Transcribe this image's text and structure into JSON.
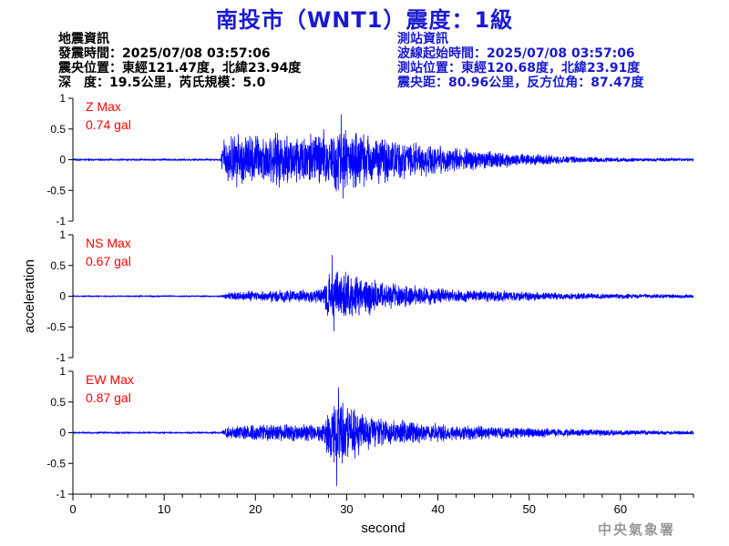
{
  "header": {
    "title": "南投市（WNT1）震度：1級"
  },
  "event_info": {
    "heading": "地震資訊",
    "time": "發震時間：2025/07/08 03:57:06",
    "epicenter": "震央位置：東經121.47度，北緯23.94度",
    "depth_magnitude": "深　度：19.5公里，芮氏規模：5.0"
  },
  "station_info": {
    "heading": "測站資訊",
    "wave_start": "波線起始時間：2025/07/08 03:57:06",
    "location": "測站位置：東經120.68度，北緯23.91度",
    "distance": "震央距：80.96公里，反方位角：87.47度"
  },
  "footer": {
    "agency": "中央氣象署"
  },
  "colors": {
    "title": "#1a1ad0",
    "station_text": "#1a1ad0",
    "trace": "#0000ff",
    "max_label": "#ff0000",
    "axis": "#000000",
    "footer": "#9a9a9a"
  },
  "chart_data": {
    "type": "line",
    "xlabel": "second",
    "ylabel": "acceleration",
    "xlim": [
      0,
      68
    ],
    "xticks": [
      0,
      10,
      20,
      30,
      40,
      50,
      60
    ],
    "ylim": [
      -1,
      1
    ],
    "yticks": [
      1,
      0.5,
      0,
      -0.5,
      -1
    ],
    "ytick_labels": [
      "1",
      "0.5",
      "0",
      "-0.5",
      "-1"
    ],
    "grid": false,
    "panels": [
      {
        "name": "Z",
        "max_label": "Z Max",
        "max_value": "0.74 gal",
        "peak": 0.74,
        "envelope": {
          "t": [
            0,
            16.2,
            16.5,
            18,
            21,
            25,
            29,
            32,
            36,
            40,
            45,
            50,
            55,
            60,
            68
          ],
          "amp": [
            0.012,
            0.012,
            0.35,
            0.42,
            0.4,
            0.42,
            0.5,
            0.42,
            0.3,
            0.22,
            0.15,
            0.09,
            0.05,
            0.035,
            0.02
          ]
        }
      },
      {
        "name": "NS",
        "max_label": "NS Max",
        "max_value": "0.67 gal",
        "peak": 0.67,
        "envelope": {
          "t": [
            0,
            16.2,
            16.8,
            22,
            27.3,
            28,
            30,
            32,
            35,
            38,
            42,
            48,
            55,
            62,
            68
          ],
          "amp": [
            0.008,
            0.008,
            0.06,
            0.1,
            0.1,
            0.38,
            0.4,
            0.3,
            0.2,
            0.15,
            0.1,
            0.08,
            0.05,
            0.035,
            0.03
          ]
        }
      },
      {
        "name": "EW",
        "max_label": "EW Max",
        "max_value": "0.87 gal",
        "peak": 0.87,
        "envelope": {
          "t": [
            0,
            16.2,
            16.8,
            22,
            27.5,
            28.3,
            29.5,
            32,
            35,
            38,
            42,
            48,
            55,
            62,
            68
          ],
          "amp": [
            0.01,
            0.01,
            0.1,
            0.13,
            0.14,
            0.55,
            0.5,
            0.3,
            0.2,
            0.16,
            0.12,
            0.09,
            0.06,
            0.04,
            0.03
          ]
        }
      }
    ]
  }
}
